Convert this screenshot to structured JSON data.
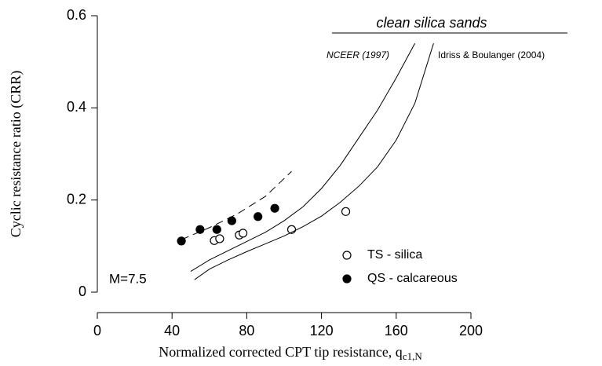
{
  "chart_data": {
    "type": "scatter",
    "xlabel": "Normalized corrected CPT tip resistance, q",
    "xlabel_subscript": "c1,N",
    "ylabel": "Cyclic resistance ratio (CRR)",
    "annotations": [
      "clean silica sands",
      "M=7.5"
    ],
    "xlim": [
      0,
      200
    ],
    "ylim": [
      0,
      0.6
    ],
    "xticks": [
      0,
      40,
      80,
      120,
      160,
      200
    ],
    "yticks": [
      0,
      0.2,
      0.4,
      0.6
    ],
    "series": [
      {
        "name": "TS - silica",
        "style": "open",
        "color": "#000000",
        "x": [
          62.6,
          65.5,
          76,
          78,
          104,
          133
        ],
        "values": [
          0.112,
          0.116,
          0.124,
          0.128,
          0.136,
          0.175
        ]
      },
      {
        "name": "QS - calcareous",
        "style": "filled",
        "color": "#000000",
        "x": [
          45,
          55,
          64,
          72,
          86,
          95
        ],
        "values": [
          0.111,
          0.136,
          0.136,
          0.155,
          0.164,
          0.182
        ]
      },
      {
        "name": "NCEER (1997)",
        "style": "line",
        "color": "#000000",
        "x": [
          50,
          60,
          70,
          80,
          90,
          100,
          110,
          120,
          130,
          140,
          150,
          160,
          170
        ],
        "values": [
          0.045,
          0.07,
          0.09,
          0.11,
          0.13,
          0.155,
          0.185,
          0.225,
          0.275,
          0.335,
          0.395,
          0.465,
          0.54
        ]
      },
      {
        "name": "Idriss & Boulanger (2004)",
        "style": "line",
        "color": "#000000",
        "x": [
          52,
          60,
          70,
          80,
          90,
          100,
          110,
          120,
          130,
          140,
          150,
          160,
          170,
          180
        ],
        "values": [
          0.027,
          0.05,
          0.07,
          0.088,
          0.105,
          0.122,
          0.142,
          0.165,
          0.195,
          0.23,
          0.272,
          0.33,
          0.41,
          0.54
        ]
      },
      {
        "style": "dashed",
        "color": "#000000",
        "x": [
          45,
          60,
          75,
          90,
          104
        ],
        "values": [
          0.114,
          0.14,
          0.17,
          0.208,
          0.262
        ]
      }
    ]
  }
}
